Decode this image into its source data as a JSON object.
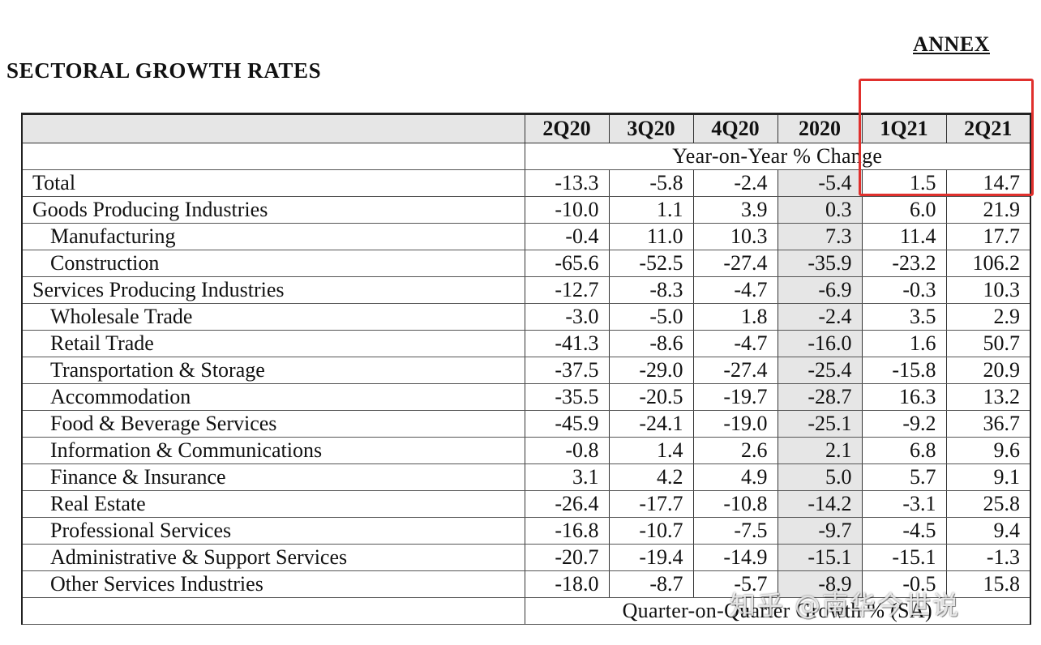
{
  "annex_label": "ANNEX",
  "title": "SECTORAL GROWTH RATES",
  "table": {
    "columns": [
      "2Q20",
      "3Q20",
      "4Q20",
      "2020",
      "1Q21",
      "2Q21"
    ],
    "yoy_caption": "Year-on-Year % Change",
    "qoq_caption": "Quarter-on-Quarter Growth % (SA)",
    "shaded_column": "2020",
    "rows": [
      {
        "label": "Total",
        "indent": false,
        "values": [
          "-13.3",
          "-5.8",
          "-2.4",
          "-5.4",
          "1.5",
          "14.7"
        ]
      },
      {
        "label": "Goods Producing Industries",
        "indent": false,
        "values": [
          "-10.0",
          "1.1",
          "3.9",
          "0.3",
          "6.0",
          "21.9"
        ]
      },
      {
        "label": "Manufacturing",
        "indent": true,
        "values": [
          "-0.4",
          "11.0",
          "10.3",
          "7.3",
          "11.4",
          "17.7"
        ]
      },
      {
        "label": "Construction",
        "indent": true,
        "values": [
          "-65.6",
          "-52.5",
          "-27.4",
          "-35.9",
          "-23.2",
          "106.2"
        ]
      },
      {
        "label": "Services Producing Industries",
        "indent": false,
        "values": [
          "-12.7",
          "-8.3",
          "-4.7",
          "-6.9",
          "-0.3",
          "10.3"
        ]
      },
      {
        "label": "Wholesale Trade",
        "indent": true,
        "values": [
          "-3.0",
          "-5.0",
          "1.8",
          "-2.4",
          "3.5",
          "2.9"
        ]
      },
      {
        "label": "Retail Trade",
        "indent": true,
        "values": [
          "-41.3",
          "-8.6",
          "-4.7",
          "-16.0",
          "1.6",
          "50.7"
        ]
      },
      {
        "label": "Transportation & Storage",
        "indent": true,
        "values": [
          "-37.5",
          "-29.0",
          "-27.4",
          "-25.4",
          "-15.8",
          "20.9"
        ]
      },
      {
        "label": "Accommodation",
        "indent": true,
        "values": [
          "-35.5",
          "-20.5",
          "-19.7",
          "-28.7",
          "16.3",
          "13.2"
        ]
      },
      {
        "label": "Food & Beverage Services",
        "indent": true,
        "values": [
          "-45.9",
          "-24.1",
          "-19.0",
          "-25.1",
          "-9.2",
          "36.7"
        ]
      },
      {
        "label": "Information & Communications",
        "indent": true,
        "values": [
          "-0.8",
          "1.4",
          "2.6",
          "2.1",
          "6.8",
          "9.6"
        ]
      },
      {
        "label": "Finance & Insurance",
        "indent": true,
        "values": [
          "3.1",
          "4.2",
          "4.9",
          "5.0",
          "5.7",
          "9.1"
        ]
      },
      {
        "label": "Real Estate",
        "indent": true,
        "values": [
          "-26.4",
          "-17.7",
          "-10.8",
          "-14.2",
          "-3.1",
          "25.8"
        ]
      },
      {
        "label": "Professional Services",
        "indent": true,
        "values": [
          "-16.8",
          "-10.7",
          "-7.5",
          "-9.7",
          "-4.5",
          "9.4"
        ]
      },
      {
        "label": "Administrative & Support Services",
        "indent": true,
        "values": [
          "-20.7",
          "-19.4",
          "-14.9",
          "-15.1",
          "-15.1",
          "-1.3"
        ]
      },
      {
        "label": "Other Services Industries",
        "indent": true,
        "values": [
          "-18.0",
          "-8.7",
          "-5.7",
          "-8.9",
          "-0.5",
          "15.8"
        ]
      }
    ]
  },
  "highlight": {
    "color": "#e0302d",
    "columns": [
      "1Q21",
      "2Q21"
    ]
  },
  "watermark": "知乎 @南华今世说",
  "colors": {
    "shade": "#e6e6e6",
    "text": "#111111",
    "border": "#222222"
  }
}
